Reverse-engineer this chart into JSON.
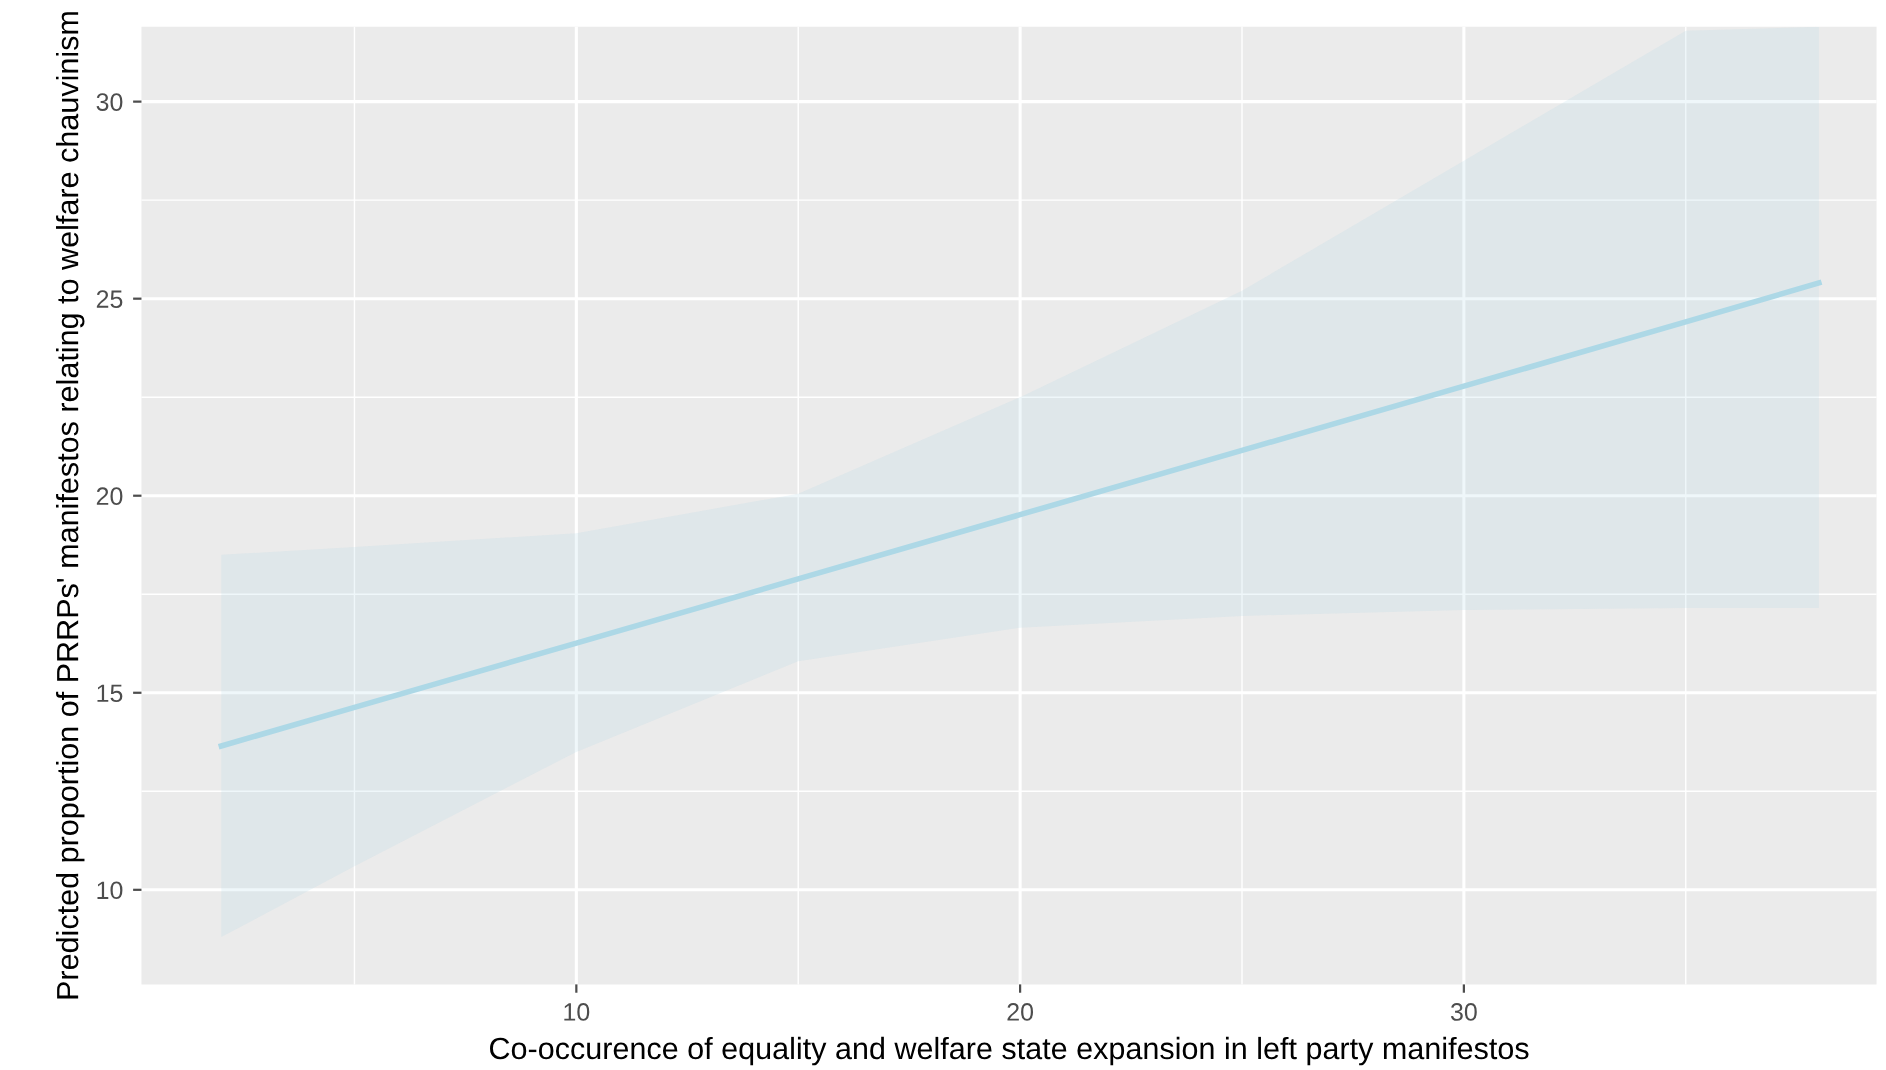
{
  "chart_data": {
    "type": "line",
    "xlabel": "Co-occurence of equality and welfare state expansion in left party manifestos",
    "ylabel": "Predicted proportion of PRRPs' manifestos relating to welfare chauvinism",
    "x": [
      2,
      5,
      10,
      15,
      20,
      25,
      30,
      35,
      38
    ],
    "series": [
      {
        "color": "#add8e6",
        "values": [
          13.65,
          14.63,
          16.26,
          17.89,
          19.52,
          21.15,
          22.78,
          24.41,
          25.4
        ],
        "lower": [
          8.8,
          10.6,
          13.5,
          15.8,
          16.65,
          16.95,
          17.1,
          17.15,
          17.15
        ],
        "upper": [
          18.5,
          18.7,
          19.05,
          20.05,
          22.5,
          25.2,
          28.5,
          31.8,
          31.9
        ]
      }
    ],
    "xlim": [
      0.2,
      39.3
    ],
    "ylim": [
      7.6,
      31.9
    ],
    "xticks": [
      10,
      20,
      30
    ],
    "yticks": [
      10,
      15,
      20,
      25,
      30
    ],
    "grid": true,
    "marker": "none",
    "line_style": "solid"
  }
}
